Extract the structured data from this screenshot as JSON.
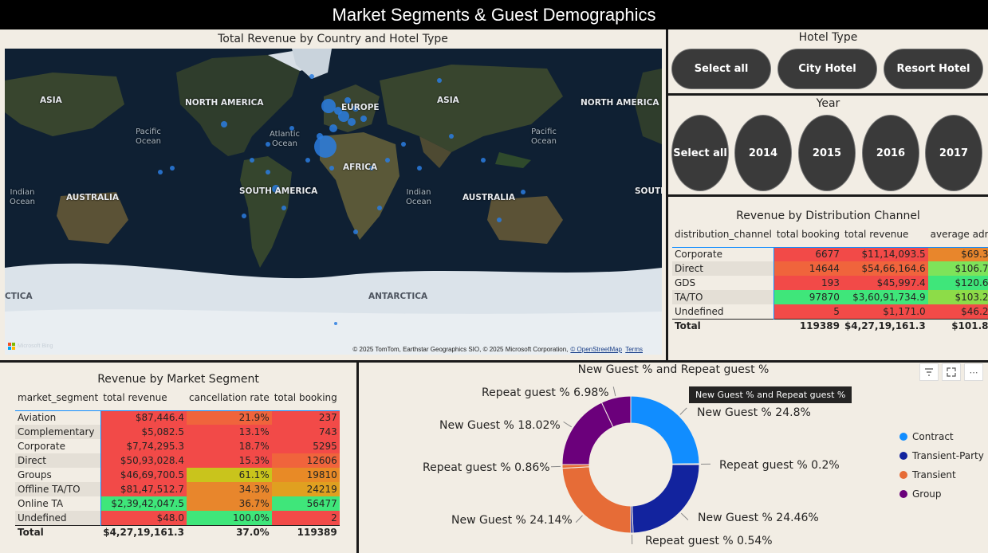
{
  "page_title": "Market Segments & Guest Demographics",
  "map": {
    "title": "Total Revenue by Country and Hotel Type",
    "labels": {
      "asia_left": "ASIA",
      "north_america_left": "NORTH AMERICA",
      "europe": "EUROPE",
      "asia_right": "ASIA",
      "north_america_right": "NORTH AMERICA",
      "pacific_left": "Pacific\nOcean",
      "atlantic": "Atlantic\nOcean",
      "pacific_right": "Pacific\nOcean",
      "africa": "AFRICA",
      "indian_left": "Indian\nOcean",
      "australia_left": "AUSTRALIA",
      "south_america": "SOUTH AMERICA",
      "indian_right": "Indian\nOcean",
      "australia_right": "AUSTRALIA",
      "south_cut": "SOUTI",
      "antarctica_left": "CTICA",
      "antarctica": "ANTARCTICA"
    },
    "logo_text": "Microsoft Bing",
    "attribution": "© 2025 TomTom, Earthstar Geographics SIO, © 2025 Microsoft Corporation,",
    "osm_link": "© OpenStreetMap",
    "terms": "Terms",
    "colors": {
      "bubble": "#2a7de1",
      "water": "#0f2033",
      "land": "#31412e",
      "ice": "#dbe3ea"
    }
  },
  "hotel_slicer": {
    "title": "Hotel Type",
    "options": [
      "Select all",
      "City Hotel",
      "Resort Hotel"
    ]
  },
  "year_slicer": {
    "title": "Year",
    "options": [
      "Select all",
      "2014",
      "2015",
      "2016",
      "2017"
    ]
  },
  "distribution": {
    "title": "Revenue by Distribution Channel",
    "columns": [
      "distribution_channel",
      "total booking",
      "total revenue",
      "average adr"
    ],
    "rows": [
      {
        "label": "Corporate",
        "booking": "6677",
        "revenue": "$11,14,093.5",
        "adr": "$69.3"
      },
      {
        "label": "Direct",
        "booking": "14644",
        "revenue": "$54,66,164.6",
        "adr": "$106.7"
      },
      {
        "label": "GDS",
        "booking": "193",
        "revenue": "$45,997.4",
        "adr": "$120.6"
      },
      {
        "label": "TA/TO",
        "booking": "97870",
        "revenue": "$3,60,91,734.9",
        "adr": "$103.2"
      },
      {
        "label": "Undefined",
        "booking": "5",
        "revenue": "$1,171.0",
        "adr": "$46.2"
      }
    ],
    "total": {
      "label": "Total",
      "booking": "119389",
      "revenue": "$4,27,19,161.3",
      "adr": "$101.8"
    },
    "cell_colors": [
      [
        "#f24a48",
        "#f24a48",
        "#e8862c"
      ],
      [
        "#f0643c",
        "#f0643c",
        "#7ee35a"
      ],
      [
        "#f24a48",
        "#f24a48",
        "#3fe67a"
      ],
      [
        "#3fe67a",
        "#3fe67a",
        "#8ddc48"
      ],
      [
        "#f24a48",
        "#f24a48",
        "#f24a48"
      ]
    ]
  },
  "segments": {
    "title": "Revenue by Market Segment",
    "columns": [
      "market_segment",
      "total revenue",
      "cancellation rate",
      "total booking"
    ],
    "rows": [
      {
        "label": "Aviation",
        "revenue": "$87,446.4",
        "cancel": "21.9%",
        "booking": "237"
      },
      {
        "label": "Complementary",
        "revenue": "$5,082.5",
        "cancel": "13.1%",
        "booking": "743"
      },
      {
        "label": "Corporate",
        "revenue": "$7,74,295.3",
        "cancel": "18.7%",
        "booking": "5295"
      },
      {
        "label": "Direct",
        "revenue": "$50,93,028.4",
        "cancel": "15.3%",
        "booking": "12606"
      },
      {
        "label": "Groups",
        "revenue": "$46,69,700.5",
        "cancel": "61.1%",
        "booking": "19810"
      },
      {
        "label": "Offline TA/TO",
        "revenue": "$81,47,512.7",
        "cancel": "34.3%",
        "booking": "24219"
      },
      {
        "label": "Online TA",
        "revenue": "$2,39,42,047.5",
        "cancel": "36.7%",
        "booking": "56477"
      },
      {
        "label": "Undefined",
        "revenue": "$48.0",
        "cancel": "100.0%",
        "booking": "2"
      }
    ],
    "total": {
      "label": "Total",
      "revenue": "$4,27,19,161.3",
      "cancel": "37.0%",
      "booking": "119389"
    },
    "cell_colors": [
      [
        "#f24a48",
        "#f0643c",
        "#f24a48"
      ],
      [
        "#f24a48",
        "#f24a48",
        "#f24a48"
      ],
      [
        "#f24a48",
        "#f24a48",
        "#f24a48"
      ],
      [
        "#f24a48",
        "#f24a48",
        "#f0643c"
      ],
      [
        "#f24a48",
        "#c9c41c",
        "#e88a26"
      ],
      [
        "#f24a48",
        "#e8862c",
        "#e0a020"
      ],
      [
        "#3fe67a",
        "#e8862c",
        "#3fe67a"
      ],
      [
        "#f24a48",
        "#3fe67a",
        "#f24a48"
      ]
    ]
  },
  "donut": {
    "title": "New Guest % and Repeat guest %",
    "tooltip": "New Guest % and Repeat guest %",
    "toolbar": {
      "filter_icon": "filter-icon",
      "focus_icon": "focus-mode-icon",
      "more_icon": "more-options-icon",
      "more_text": "⋯"
    },
    "legend": [
      {
        "name": "Contract",
        "color": "#118dff"
      },
      {
        "name": "Transient-Party",
        "color": "#12239e"
      },
      {
        "name": "Transient",
        "color": "#e66c37"
      },
      {
        "name": "Group",
        "color": "#6b007b"
      }
    ],
    "labels": {
      "new_contract": "New Guest % 24.8%",
      "repeat_contract": "Repeat guest % 0.2%",
      "new_transient_party": "New Guest % 24.46%",
      "repeat_transient_party": "Repeat guest % 0.54%",
      "new_transient": "New Guest % 24.14%",
      "repeat_transient": "Repeat guest % 0.86%",
      "new_group": "New Guest % 18.02%",
      "repeat_group": "Repeat guest % 6.98%"
    }
  },
  "chart_data": {
    "type": "pie",
    "title": "New Guest % and Repeat guest %",
    "categories": [
      "Contract",
      "Transient-Party",
      "Transient",
      "Group"
    ],
    "series": [
      {
        "name": "New Guest %",
        "values": [
          24.8,
          24.46,
          24.14,
          18.02
        ]
      },
      {
        "name": "Repeat guest %",
        "values": [
          0.2,
          0.54,
          0.86,
          6.98
        ]
      }
    ],
    "slice_order": [
      {
        "category": "Contract",
        "series": "New Guest %",
        "value": 24.8
      },
      {
        "category": "Contract",
        "series": "Repeat guest %",
        "value": 0.2
      },
      {
        "category": "Transient-Party",
        "series": "New Guest %",
        "value": 24.46
      },
      {
        "category": "Transient-Party",
        "series": "Repeat guest %",
        "value": 0.54
      },
      {
        "category": "Transient",
        "series": "New Guest %",
        "value": 24.14
      },
      {
        "category": "Transient",
        "series": "Repeat guest %",
        "value": 0.86
      },
      {
        "category": "Group",
        "series": "New Guest %",
        "value": 18.02
      },
      {
        "category": "Group",
        "series": "Repeat guest %",
        "value": 6.98
      }
    ],
    "legend_position": "right"
  }
}
